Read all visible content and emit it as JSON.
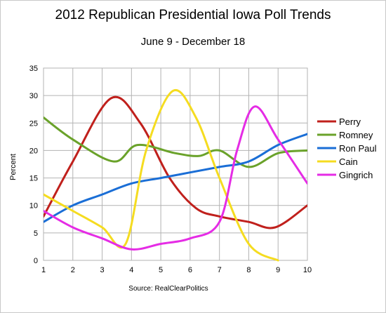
{
  "chart_data": {
    "type": "line",
    "title": "2012 Republican Presidential Iowa Poll Trends",
    "subtitle": "June 9 - December 18",
    "xlabel": "",
    "ylabel": "Percent",
    "source": "Source: RealClearPolitics",
    "x": [
      1,
      2,
      3,
      4,
      5,
      6,
      7,
      8,
      9,
      10
    ],
    "x_ticks": [
      "1",
      "2",
      "3",
      "4",
      "5",
      "6",
      "7",
      "8",
      "9",
      "10"
    ],
    "xlim": [
      1,
      10
    ],
    "ylim": [
      0,
      35
    ],
    "y_ticks": [
      0,
      5,
      10,
      15,
      20,
      25,
      30,
      35
    ],
    "grid": true,
    "legend_position": "right",
    "series": [
      {
        "name": "Perry",
        "color": "#c0201c",
        "points": [
          [
            1,
            8
          ],
          [
            2,
            18
          ],
          [
            3.3,
            29.5
          ],
          [
            4.3,
            25
          ],
          [
            5.3,
            15
          ],
          [
            6.2,
            9.5
          ],
          [
            7,
            8
          ],
          [
            8,
            7
          ],
          [
            8.9,
            6
          ],
          [
            10,
            10
          ]
        ]
      },
      {
        "name": "Romney",
        "color": "#6aa22a",
        "points": [
          [
            1,
            26
          ],
          [
            2,
            22
          ],
          [
            3.4,
            18
          ],
          [
            4.2,
            21
          ],
          [
            5.5,
            19.5
          ],
          [
            6.3,
            19
          ],
          [
            7,
            20
          ],
          [
            8,
            17
          ],
          [
            9,
            19.5
          ],
          [
            10,
            20
          ]
        ]
      },
      {
        "name": "Ron Paul",
        "color": "#1a6ed6",
        "points": [
          [
            1,
            7
          ],
          [
            2,
            10
          ],
          [
            3,
            12
          ],
          [
            4,
            14
          ],
          [
            5,
            15
          ],
          [
            6,
            16
          ],
          [
            7,
            17
          ],
          [
            8,
            18
          ],
          [
            9,
            21
          ],
          [
            10,
            23
          ]
        ]
      },
      {
        "name": "Cain",
        "color": "#f5dc20",
        "points": [
          [
            1,
            12
          ],
          [
            2,
            9
          ],
          [
            3,
            6
          ],
          [
            3.8,
            3
          ],
          [
            4.5,
            20
          ],
          [
            5.4,
            30.8
          ],
          [
            6.2,
            26
          ],
          [
            7,
            15
          ],
          [
            8,
            3
          ],
          [
            9,
            0
          ]
        ]
      },
      {
        "name": "Gingrich",
        "color": "#e52ce5",
        "points": [
          [
            1,
            9
          ],
          [
            2,
            6
          ],
          [
            3,
            4
          ],
          [
            4,
            2
          ],
          [
            5,
            3
          ],
          [
            6,
            4
          ],
          [
            7,
            7
          ],
          [
            7.6,
            20
          ],
          [
            8.2,
            28
          ],
          [
            9,
            22
          ],
          [
            10,
            14
          ]
        ]
      }
    ]
  }
}
